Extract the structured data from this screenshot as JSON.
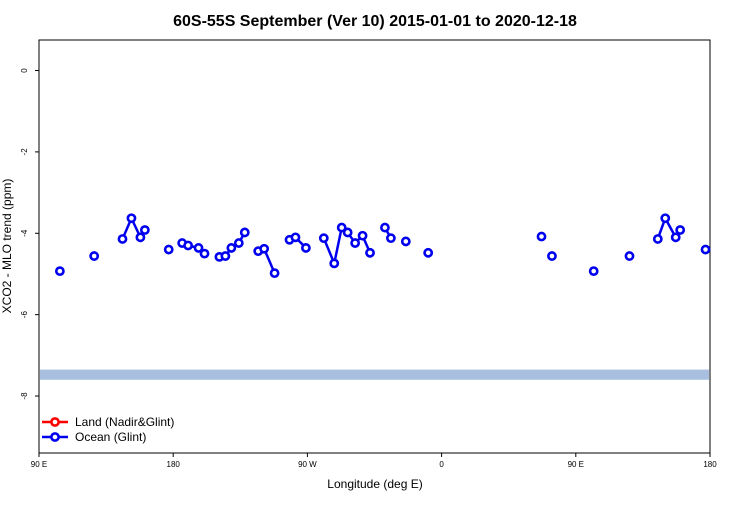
{
  "chart_data": {
    "type": "line",
    "title": "60S-55S September (Ver 10)   2015-01-01 to 2020-12-18",
    "xlabel": "Longitude (deg E)",
    "ylabel": "XCO2 - MLO trend (ppm)",
    "xlim": [
      90,
      450
    ],
    "ylim": [
      -9.4,
      0.75
    ],
    "x_ticks": [
      {
        "value": 90,
        "label": "90 E"
      },
      {
        "value": 180,
        "label": "180"
      },
      {
        "value": 270,
        "label": "90 W"
      },
      {
        "value": 360,
        "label": "0"
      },
      {
        "value": 450,
        "label": "90 E"
      }
    ],
    "x_ticks_second": [
      {
        "value": 540,
        "label": "180"
      }
    ],
    "y_ticks": [
      0,
      -2,
      -4,
      -6,
      -8
    ],
    "grid": false,
    "legend_position": "bottom-left",
    "legend": [
      {
        "label": "Land (Nadir&Glint)",
        "color": "#ff0000"
      },
      {
        "label": "Ocean (Glint)",
        "color": "#0000ee"
      }
    ],
    "band": {
      "y_from": -7.35,
      "y_to": -7.6,
      "color": "#a8bfe0"
    },
    "series": [
      {
        "name": "Ocean (Glint)",
        "color": "#0000ee",
        "segments": [
          [
            [
              104,
              -4.93
            ]
          ],
          [
            [
              127,
              -4.56
            ]
          ],
          [
            [
              146,
              -4.14
            ],
            [
              152,
              -3.63
            ],
            [
              158,
              -4.1
            ],
            [
              161,
              -3.92
            ]
          ],
          [
            [
              177,
              -4.4
            ]
          ],
          [
            [
              186,
              -4.24
            ],
            [
              190,
              -4.3
            ],
            [
              197,
              -4.36
            ],
            [
              201,
              -4.5
            ]
          ],
          [
            [
              211,
              -4.58
            ],
            [
              215,
              -4.56
            ],
            [
              219,
              -4.36
            ],
            [
              224,
              -4.24
            ],
            [
              228,
              -3.98
            ]
          ],
          [
            [
              237,
              -4.44
            ],
            [
              241,
              -4.38
            ],
            [
              248,
              -4.98
            ]
          ],
          [
            [
              258,
              -4.16
            ],
            [
              262,
              -4.1
            ],
            [
              269,
              -4.36
            ]
          ],
          [
            [
              281,
              -4.12
            ],
            [
              288,
              -4.74
            ],
            [
              293,
              -3.86
            ],
            [
              297,
              -3.98
            ],
            [
              302,
              -4.24
            ],
            [
              307,
              -4.06
            ],
            [
              312,
              -4.48
            ]
          ],
          [
            [
              322,
              -3.86
            ],
            [
              326,
              -4.12
            ]
          ],
          [
            [
              336,
              -4.2
            ]
          ],
          [
            [
              351,
              -4.48
            ]
          ],
          [
            [
              427,
              -4.08
            ]
          ],
          [
            [
              434,
              -4.56
            ]
          ]
        ]
      }
    ]
  },
  "second_range_series": {
    "name": "Ocean (Glint)",
    "color": "#0000ee",
    "xlim": [
      450,
      540
    ],
    "segments": [
      [
        [
          462,
          -4.93
        ]
      ],
      [
        [
          486,
          -4.56
        ]
      ],
      [
        [
          505,
          -4.14
        ],
        [
          510,
          -3.63
        ],
        [
          517,
          -4.1
        ],
        [
          520,
          -3.92
        ]
      ],
      [
        [
          537,
          -4.4
        ]
      ]
    ]
  }
}
